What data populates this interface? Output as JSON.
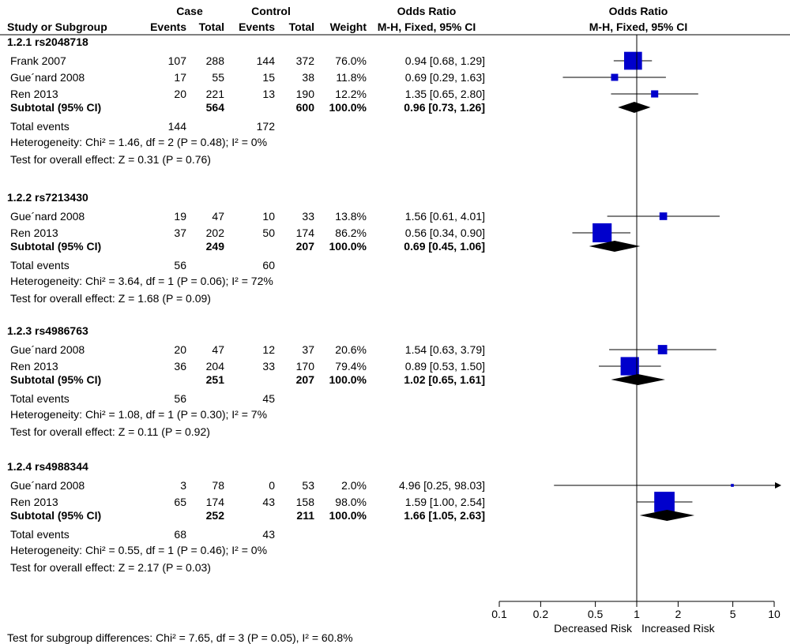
{
  "header": {
    "case": "Case",
    "control": "Control",
    "odds_ratio_left": "Odds Ratio",
    "odds_ratio_right": "Odds Ratio",
    "study_col": "Study or Subgroup",
    "events1": "Events",
    "total1": "Total",
    "events2": "Events",
    "total2": "Total",
    "weight": "Weight",
    "method_left": "M-H, Fixed, 95% CI",
    "method_right": "M-H, Fixed, 95% CI"
  },
  "footer": {
    "subgroup_test": "Test for subgroup differences: Chi² = 7.65, df = 3 (P = 0.05), I² = 60.8%"
  },
  "chart_data": {
    "type": "forest",
    "x_scale": "log",
    "xlim": [
      0.1,
      10
    ],
    "null_line": 1,
    "x_ticks": [
      "0.1",
      "0.2",
      "0.5",
      "1",
      "2",
      "5",
      "10"
    ],
    "xlabel_left": "Decreased Risk",
    "xlabel_right": "Increased Risk",
    "groups": [
      {
        "title": "1.2.1 rs2048718",
        "studies": [
          {
            "name": "Frank 2007",
            "case_events": "107",
            "case_total": "288",
            "control_events": "144",
            "control_total": "372",
            "weight": "76.0%",
            "ci_text": "0.94 [0.68, 1.29]",
            "or": 0.94,
            "lo": 0.68,
            "hi": 1.29,
            "w": 76.0
          },
          {
            "name": "Gue´nard 2008",
            "case_events": "17",
            "case_total": "55",
            "control_events": "15",
            "control_total": "38",
            "weight": "11.8%",
            "ci_text": "0.69 [0.29, 1.63]",
            "or": 0.69,
            "lo": 0.29,
            "hi": 1.63,
            "w": 11.8
          },
          {
            "name": "Ren 2013",
            "case_events": "20",
            "case_total": "221",
            "control_events": "13",
            "control_total": "190",
            "weight": "12.2%",
            "ci_text": "1.35 [0.65, 2.80]",
            "or": 1.35,
            "lo": 0.65,
            "hi": 2.8,
            "w": 12.2
          }
        ],
        "subtotal": {
          "label": "Subtotal (95% CI)",
          "case_total": "564",
          "control_total": "600",
          "weight": "100.0%",
          "ci_text": "0.96 [0.73, 1.26]",
          "or": 0.96,
          "lo": 0.73,
          "hi": 1.26
        },
        "total_events": {
          "label": "Total events",
          "case": "144",
          "control": "172"
        },
        "heterogeneity": "Heterogeneity: Chi² = 1.46, df = 2 (P = 0.48); I² = 0%",
        "overall": "Test for overall effect: Z = 0.31 (P = 0.76)"
      },
      {
        "title": "1.2.2 rs7213430",
        "studies": [
          {
            "name": "Gue´nard 2008",
            "case_events": "19",
            "case_total": "47",
            "control_events": "10",
            "control_total": "33",
            "weight": "13.8%",
            "ci_text": "1.56 [0.61, 4.01]",
            "or": 1.56,
            "lo": 0.61,
            "hi": 4.01,
            "w": 13.8
          },
          {
            "name": "Ren 2013",
            "case_events": "37",
            "case_total": "202",
            "control_events": "50",
            "control_total": "174",
            "weight": "86.2%",
            "ci_text": "0.56 [0.34, 0.90]",
            "or": 0.56,
            "lo": 0.34,
            "hi": 0.9,
            "w": 86.2
          }
        ],
        "subtotal": {
          "label": "Subtotal (95% CI)",
          "case_total": "249",
          "control_total": "207",
          "weight": "100.0%",
          "ci_text": "0.69 [0.45, 1.06]",
          "or": 0.69,
          "lo": 0.45,
          "hi": 1.06
        },
        "total_events": {
          "label": "Total events",
          "case": "56",
          "control": "60"
        },
        "heterogeneity": "Heterogeneity: Chi² = 3.64, df = 1 (P = 0.06); I² = 72%",
        "overall": "Test for overall effect: Z = 1.68 (P = 0.09)"
      },
      {
        "title": "1.2.3 rs4986763",
        "studies": [
          {
            "name": "Gue´nard 2008",
            "case_events": "20",
            "case_total": "47",
            "control_events": "12",
            "control_total": "37",
            "weight": "20.6%",
            "ci_text": "1.54 [0.63, 3.79]",
            "or": 1.54,
            "lo": 0.63,
            "hi": 3.79,
            "w": 20.6
          },
          {
            "name": "Ren 2013",
            "case_events": "36",
            "case_total": "204",
            "control_events": "33",
            "control_total": "170",
            "weight": "79.4%",
            "ci_text": "0.89 [0.53, 1.50]",
            "or": 0.89,
            "lo": 0.53,
            "hi": 1.5,
            "w": 79.4
          }
        ],
        "subtotal": {
          "label": "Subtotal (95% CI)",
          "case_total": "251",
          "control_total": "207",
          "weight": "100.0%",
          "ci_text": "1.02 [0.65, 1.61]",
          "or": 1.02,
          "lo": 0.65,
          "hi": 1.61
        },
        "total_events": {
          "label": "Total events",
          "case": "56",
          "control": "45"
        },
        "heterogeneity": "Heterogeneity: Chi² = 1.08, df = 1 (P = 0.30); I² = 7%",
        "overall": "Test for overall effect: Z = 0.11 (P = 0.92)"
      },
      {
        "title": "1.2.4 rs4988344",
        "studies": [
          {
            "name": "Gue´nard 2008",
            "case_events": "3",
            "case_total": "78",
            "control_events": "0",
            "control_total": "53",
            "weight": "2.0%",
            "ci_text": "4.96 [0.25, 98.03]",
            "or": 4.96,
            "lo": 0.25,
            "hi": 98.03,
            "w": 2.0
          },
          {
            "name": "Ren 2013",
            "case_events": "65",
            "case_total": "174",
            "control_events": "43",
            "control_total": "158",
            "weight": "98.0%",
            "ci_text": "1.59 [1.00, 2.54]",
            "or": 1.59,
            "lo": 1.0,
            "hi": 2.54,
            "w": 98.0
          }
        ],
        "subtotal": {
          "label": "Subtotal (95% CI)",
          "case_total": "252",
          "control_total": "211",
          "weight": "100.0%",
          "ci_text": "1.66 [1.05, 2.63]",
          "or": 1.66,
          "lo": 1.05,
          "hi": 2.63
        },
        "total_events": {
          "label": "Total events",
          "case": "68",
          "control": "43"
        },
        "heterogeneity": "Heterogeneity: Chi² = 0.55, df = 1 (P = 0.46); I² = 0%",
        "overall": "Test for overall effect: Z = 2.17 (P = 0.03)"
      }
    ],
    "colors": {
      "study_box": "#0000cc",
      "diamond": "#000000",
      "line": "#000000"
    }
  }
}
